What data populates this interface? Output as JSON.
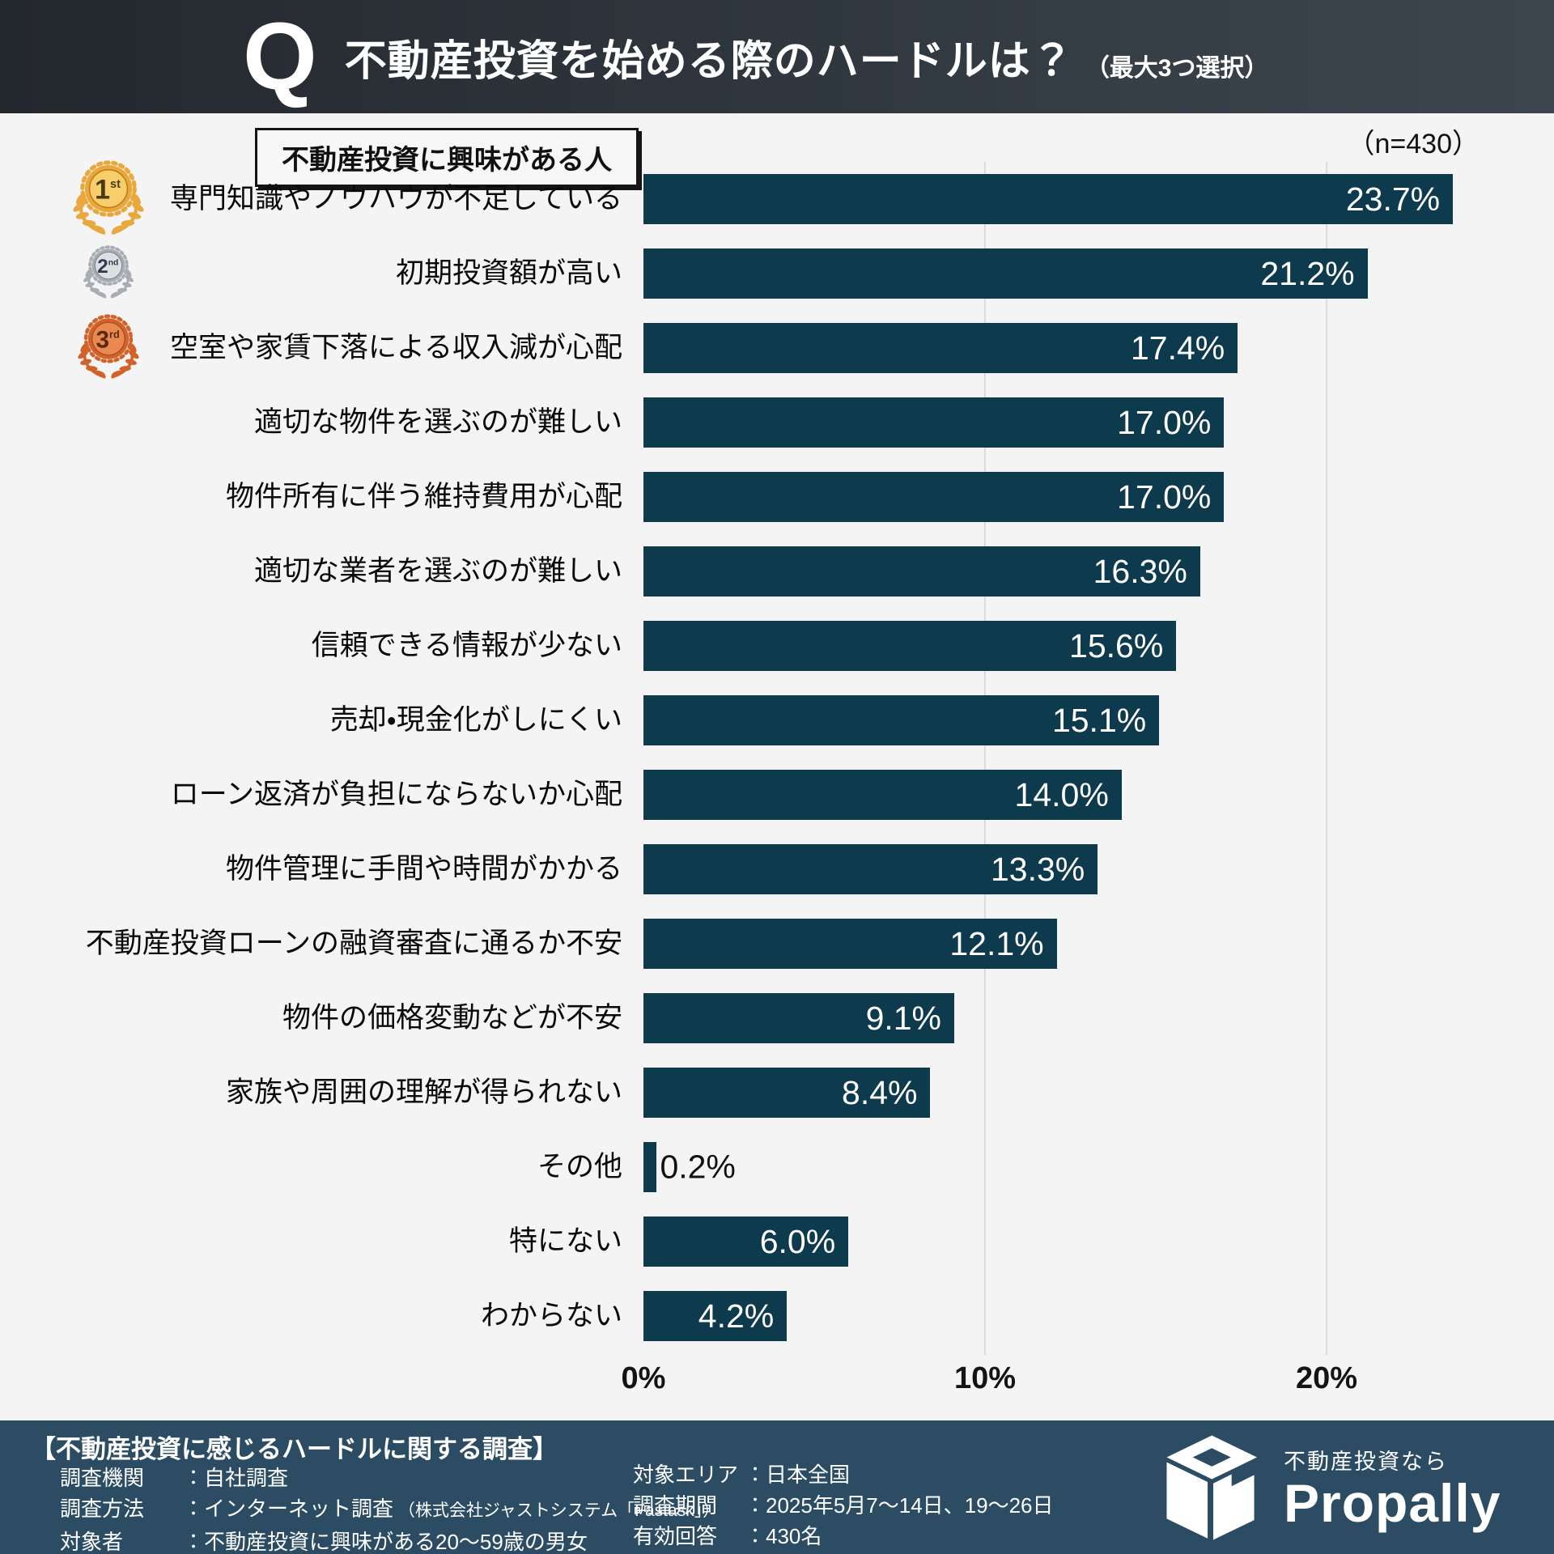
{
  "header": {
    "q_mark": "Q",
    "title": "不動産投資を始める際のハードルは？",
    "subtitle": "（最大3つ選択）"
  },
  "chart": {
    "target_label": "不動産投資に興味がある人",
    "sample_size": "（n=430）"
  },
  "chart_data": {
    "type": "bar",
    "orientation": "horizontal",
    "title": "不動産投資を始める際のハードルは？（最大3つ選択）",
    "subtitle": "不動産投資に興味がある人",
    "n": 430,
    "n_label": "（n=430）",
    "unit": "%",
    "categories": [
      "専門知識やノウハウが不足している",
      "初期投資額が高い",
      "空室や家賃下落による収入減が心配",
      "適切な物件を選ぶのが難しい",
      "物件所有に伴う維持費用が心配",
      "適切な業者を選ぶのが難しい",
      "信頼できる情報が少ない",
      "売却・現金化がしにくい",
      "ローン返済が負担にならないか心配",
      "物件管理に手間や時間がかかる",
      "不動産投資ローンの融資審査に通るか不安",
      "物件の価格変動などが不安",
      "家族や周囲の理解が得られない",
      "その他",
      "特にない",
      "わからない"
    ],
    "values": [
      23.7,
      21.2,
      17.4,
      17.0,
      17.0,
      16.3,
      15.6,
      15.1,
      14.0,
      13.3,
      12.1,
      9.1,
      8.4,
      0.2,
      6.0,
      4.2
    ],
    "value_labels": [
      "23.7%",
      "21.2%",
      "17.4%",
      "17.0%",
      "17.0%",
      "16.3%",
      "15.6%",
      "15.1%",
      "14.0%",
      "13.3%",
      "12.1%",
      "9.1%",
      "8.4%",
      "0.2%",
      "6.0%",
      "4.2%"
    ],
    "xlim": [
      0,
      25
    ],
    "xticks": {
      "values": [
        0,
        10,
        20
      ],
      "labels": [
        "0%",
        "10%",
        "20%"
      ]
    },
    "grid": "vertical gridlines at 10% and 20%",
    "legend": "none",
    "bar_color": "#0E3A4E",
    "medals": [
      {
        "rank": "1",
        "suffix": "st",
        "size": 104,
        "main": "#E9A83C",
        "light": "#F8CE6B",
        "dark": "#C07C1C",
        "num": "#4a3a16"
      },
      {
        "rank": "2",
        "suffix": "nd",
        "size": 74,
        "main": "#A7ADB3",
        "light": "#DDE0E3",
        "dark": "#7E868E",
        "num": "#2e3b4b"
      },
      {
        "rank": "3",
        "suffix": "rd",
        "size": 90,
        "main": "#D2622A",
        "light": "#E98950",
        "dark": "#A84E1E",
        "num": "#56290f"
      }
    ]
  },
  "footer": {
    "title": "【不動産投資に感じるハードルに関する調査】",
    "left_rows": [
      {
        "label": "調査機関",
        "value": "：自社調査",
        "note": ""
      },
      {
        "label": "調査方法",
        "value": "：インターネット調査",
        "note": "（株式会社ジャストシステム「Fastask」）"
      },
      {
        "label": "対象者",
        "value": "：不動産投資に興味がある20～59歳の男女",
        "note": ""
      }
    ],
    "right_rows": [
      {
        "label": "対象エリア",
        "value": "：日本全国"
      },
      {
        "label": "調査期間",
        "value": "：2025年5月7～14日、19～26日"
      },
      {
        "label": "有効回答",
        "value": "：430名"
      }
    ],
    "logo": {
      "tagline": "不動産投資なら",
      "brand": "Propally"
    }
  },
  "colors": {
    "page_bg": "#F4F4F5",
    "header_bg_left": "#23282D",
    "header_bg_right": "#3D464F",
    "bar": "#0E3A4E",
    "footer_bg": "#2B4C62",
    "gridline": "#DCDCDD",
    "text": "#111111"
  }
}
